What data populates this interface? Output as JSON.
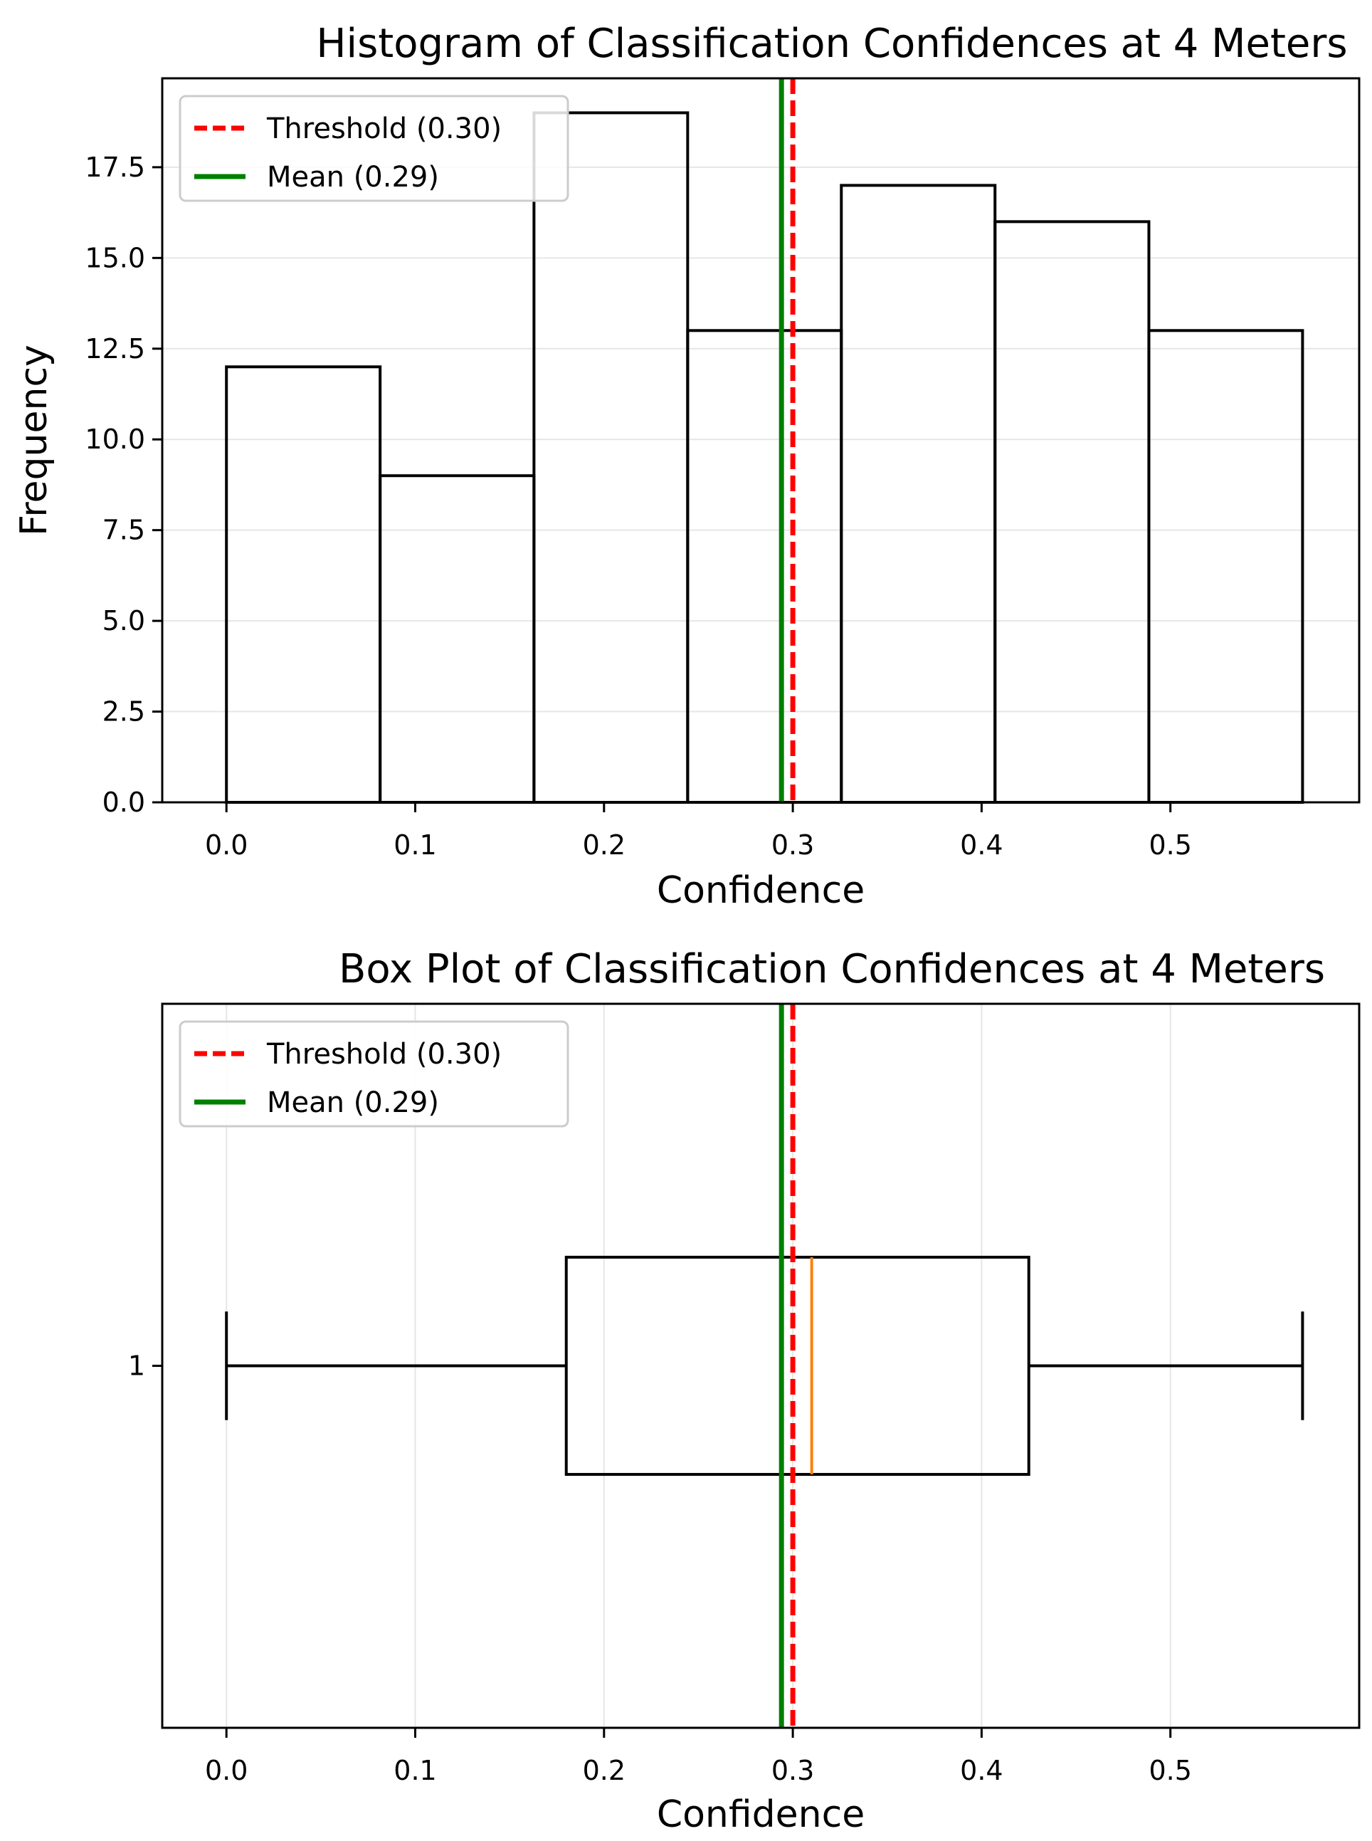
{
  "chart_data": [
    {
      "type": "histogram",
      "title": "Histogram of Classification Confidences at 4 Meters",
      "xlabel": "Confidence",
      "ylabel": "Frequency",
      "xlim": [
        -0.034,
        0.6
      ],
      "ylim": [
        0,
        19.95
      ],
      "xticks": [
        0.0,
        0.1,
        0.2,
        0.3,
        0.4,
        0.5
      ],
      "xtick_labels": [
        "0.0",
        "0.1",
        "0.2",
        "0.3",
        "0.4",
        "0.5"
      ],
      "yticks": [
        0,
        2.5,
        5,
        7.5,
        10,
        12.5,
        15,
        17.5
      ],
      "ytick_labels": [
        "0.0",
        "2.5",
        "5.0",
        "7.5",
        "10.0",
        "12.5",
        "15.0",
        "17.5"
      ],
      "grid": "y",
      "legend": "top-left",
      "bin_edges": [
        0.0,
        0.0814,
        0.1629,
        0.2443,
        0.3257,
        0.4071,
        0.4886,
        0.57
      ],
      "counts": [
        12,
        9,
        19,
        13,
        17,
        16,
        13
      ],
      "reference_lines": [
        {
          "label": "Threshold (0.30)",
          "x": 0.3,
          "color": "#ff0000",
          "style": "dashed"
        },
        {
          "label": "Mean (0.29)",
          "x": 0.294,
          "color": "#008000",
          "style": "solid"
        }
      ]
    },
    {
      "type": "box",
      "title": "Box Plot of Classification Confidences at 4 Meters",
      "xlabel": "Confidence",
      "ylabel": "",
      "xlim": [
        -0.034,
        0.6
      ],
      "ylim": [
        0.5,
        1.5
      ],
      "xticks": [
        0.0,
        0.1,
        0.2,
        0.3,
        0.4,
        0.5
      ],
      "xtick_labels": [
        "0.0",
        "0.1",
        "0.2",
        "0.3",
        "0.4",
        "0.5"
      ],
      "yticks": [
        1
      ],
      "ytick_labels": [
        "1"
      ],
      "grid": "x",
      "legend": "top-left",
      "orientation": "horizontal",
      "box": {
        "position": 1,
        "whisker_low": 0.0,
        "q1": 0.18,
        "median": 0.31,
        "q3": 0.425,
        "whisker_high": 0.57,
        "median_color": "#ff7f0e"
      },
      "reference_lines": [
        {
          "label": "Threshold (0.30)",
          "x": 0.3,
          "color": "#ff0000",
          "style": "dashed"
        },
        {
          "label": "Mean (0.29)",
          "x": 0.294,
          "color": "#008000",
          "style": "solid"
        }
      ]
    }
  ]
}
